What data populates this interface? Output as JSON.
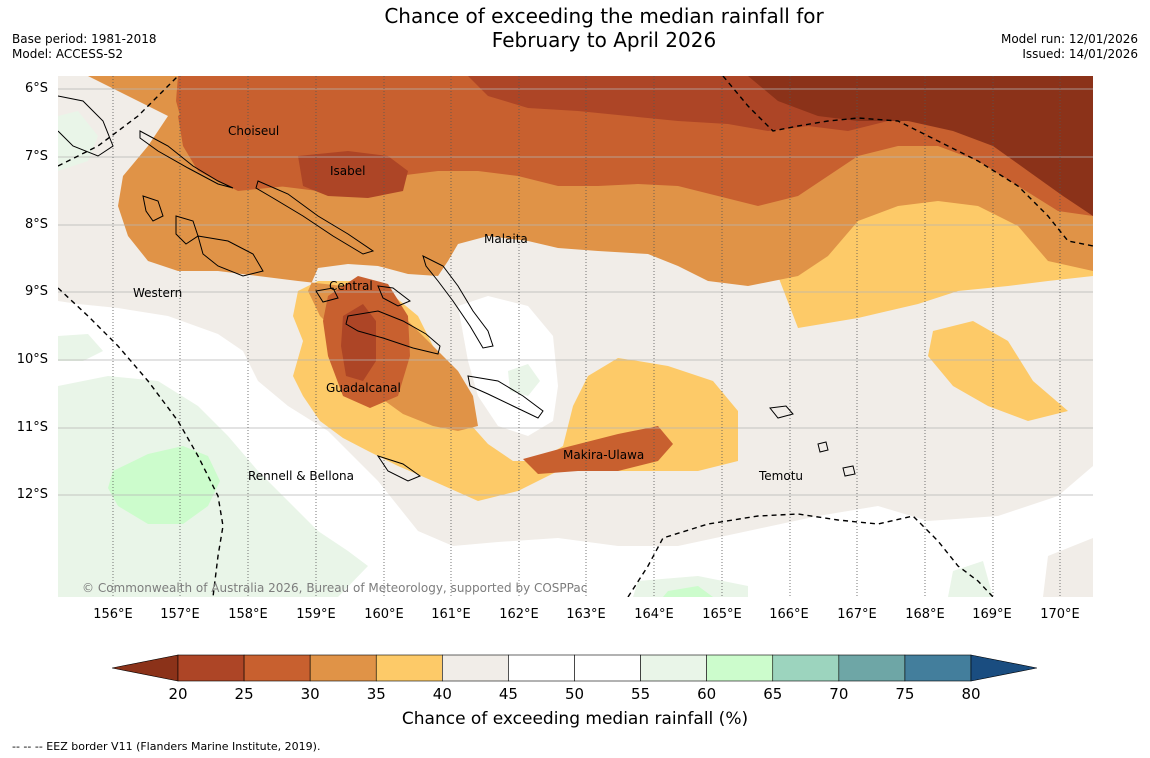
{
  "title_line1": "Chance of exceeding the median rainfall for",
  "title_line2": "February to April 2026",
  "meta_left": {
    "base_period": "Base period: 1981-2018",
    "model": "Model: ACCESS-S2"
  },
  "meta_right": {
    "model_run": "Model run: 12/01/2026",
    "issued": "Issued: 14/01/2026"
  },
  "lat_labels": [
    "6°S",
    "7°S",
    "8°S",
    "9°S",
    "10°S",
    "11°S",
    "12°S"
  ],
  "lon_labels": [
    "156°E",
    "157°E",
    "158°E",
    "159°E",
    "160°E",
    "161°E",
    "162°E",
    "163°E",
    "164°E",
    "165°E",
    "166°E",
    "167°E",
    "168°E",
    "169°E",
    "170°E"
  ],
  "places": [
    "Choiseul",
    "Isabel",
    "Malaita",
    "Western",
    "Central",
    "Guadalcanal",
    "Makira-Ulawa",
    "Rennell & Bellona",
    "Temotu"
  ],
  "copyright": "© Commonwealth of Australia 2026, Bureau of Meteorology, supported by COSPPac",
  "colorbar": {
    "ticks": [
      "20",
      "25",
      "30",
      "35",
      "40",
      "45",
      "50",
      "55",
      "60",
      "65",
      "70",
      "75",
      "80"
    ],
    "title": "Chance of exceeding median rainfall (%)",
    "under_color": "#8b3219",
    "over_color": "#1a4d80",
    "colors": [
      "#ad4526",
      "#c8602f",
      "#e09347",
      "#fdca68",
      "#f1ede8",
      "#ffffff",
      "#ffffff",
      "#e9f5e8",
      "#ccfccc",
      "#9cd4be",
      "#6ea6a6",
      "#437e9c"
    ]
  },
  "footnote": "--  --  -- EEZ border V11 (Flanders Marine Institute, 2019)."
}
